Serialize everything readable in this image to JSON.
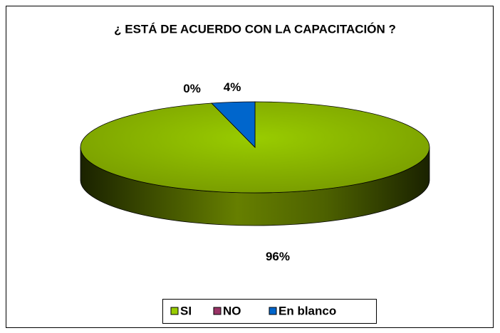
{
  "chart_data": {
    "type": "pie",
    "title": "¿ ESTÁ DE ACUERDO CON LA CAPACITACIÓN ?",
    "categories": [
      "SI",
      "NO",
      "En blanco"
    ],
    "values": [
      96,
      0,
      4
    ],
    "value_labels": [
      "96%",
      "0%",
      "4%"
    ],
    "colors": [
      "#99cc00",
      "#993366",
      "#0066cc"
    ],
    "legend": "bottom"
  }
}
